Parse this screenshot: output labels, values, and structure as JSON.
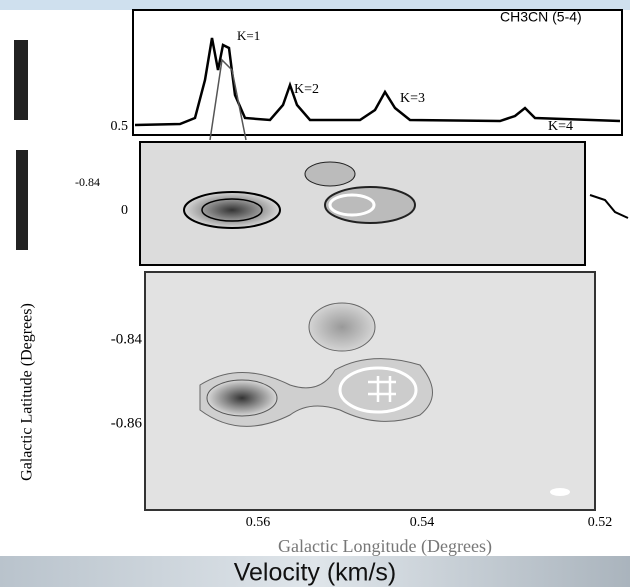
{
  "top_panel": {
    "title": "CH3CN (5-4)",
    "peak_labels": [
      "K=1",
      "K=2",
      "K=3",
      "K=4"
    ],
    "y_tick": "0.5"
  },
  "middle_panel": {
    "y_ticks": [
      "-0.84",
      "0"
    ]
  },
  "bottom_panel": {
    "y_label": "Galactic Latitude (Degrees)",
    "y_ticks": [
      "-0.84",
      "-0.86"
    ],
    "x_ticks": [
      "0.56",
      "0.54",
      "0.52"
    ],
    "x_label": "Galactic Longitude (Degrees)"
  },
  "footer": {
    "label": "Velocity (km/s)"
  }
}
